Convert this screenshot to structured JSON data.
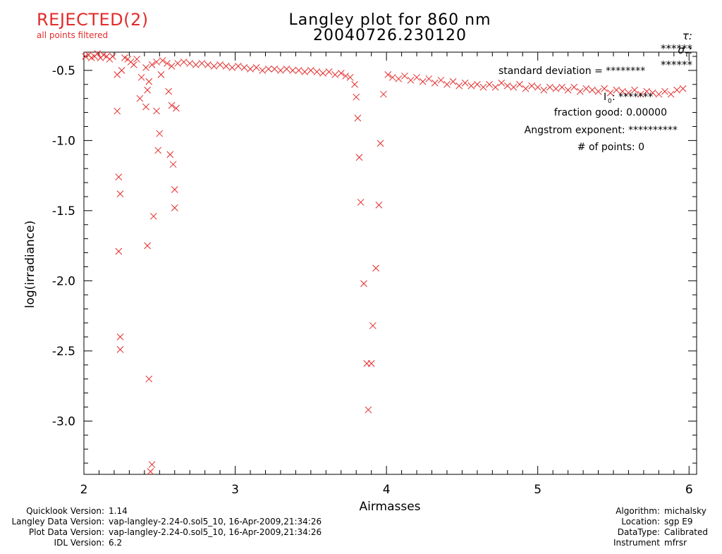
{
  "header": {
    "status": "REJECTED(2)",
    "status_note": "all points filtered",
    "title_line1": "Langley plot for 860 nm",
    "title_line2": "20040726.230120",
    "tau_label": "τ:",
    "tau_value": "******",
    "sigma_label": "σ",
    "sigma_sub": "τ",
    "sigma_value": "******"
  },
  "stats": {
    "std_dev": "standard deviation  = ********",
    "i0_label": "I",
    "i0_sub": "0",
    "i0_value": ": *******",
    "fraction_good": "fraction good: 0.00000",
    "angstrom": "Angstrom exponent: **********",
    "num_points": "# of points:     0"
  },
  "footer": {
    "left": [
      {
        "label": "Quicklook Version:",
        "value": "1.14"
      },
      {
        "label": "Langley Data Version:",
        "value": "vap-langley-2.24-0.sol5_10, 16-Apr-2009,21:34:26"
      },
      {
        "label": "Plot Data Version:",
        "value": "vap-langley-2.24-0.sol5_10, 16-Apr-2009,21:34:26"
      },
      {
        "label": "IDL Version:",
        "value": "6.2"
      }
    ],
    "right": [
      {
        "label": "Algorithm:",
        "value": "michalsky"
      },
      {
        "label": "Location:",
        "value": "sgp E9"
      },
      {
        "label": "DataType:",
        "value": "Calibrated"
      },
      {
        "label": "Instrument",
        "value": "mfrsr"
      }
    ]
  },
  "colors": {
    "marker": "#e32b2b",
    "axis": "#000000",
    "status": "#e32b2b"
  },
  "chart_data": {
    "type": "scatter",
    "xlabel": "Airmasses",
    "ylabel": "log(irradiance)",
    "xlim": [
      2,
      6.05
    ],
    "ylim": [
      -3.38,
      -0.37
    ],
    "x_ticks": [
      2,
      3,
      4,
      5,
      6
    ],
    "x_tick_labels": [
      "2",
      "3",
      "4",
      "5",
      "6"
    ],
    "y_ticks": [
      -0.5,
      -1.0,
      -1.5,
      -2.0,
      -2.5,
      -3.0
    ],
    "y_tick_labels": [
      "-0.5",
      "-1.0",
      "-1.5",
      "-2.0",
      "-2.5",
      "-3.0"
    ],
    "marker": "x",
    "series": [
      {
        "points": [
          [
            2.01,
            -0.4
          ],
          [
            2.03,
            -0.39
          ],
          [
            2.05,
            -0.41
          ],
          [
            2.07,
            -0.4
          ],
          [
            2.09,
            -0.38
          ],
          [
            2.11,
            -0.41
          ],
          [
            2.13,
            -0.39
          ],
          [
            2.15,
            -0.4
          ],
          [
            2.17,
            -0.42
          ],
          [
            2.19,
            -0.4
          ],
          [
            2.22,
            -0.53
          ],
          [
            2.25,
            -0.5
          ],
          [
            2.27,
            -0.41
          ],
          [
            2.29,
            -0.42
          ],
          [
            2.31,
            -0.44
          ],
          [
            2.33,
            -0.46
          ],
          [
            2.35,
            -0.42
          ],
          [
            2.38,
            -0.55
          ],
          [
            2.41,
            -0.48
          ],
          [
            2.45,
            -0.46
          ],
          [
            2.48,
            -0.44
          ],
          [
            2.52,
            -0.43
          ],
          [
            2.55,
            -0.45
          ],
          [
            2.58,
            -0.47
          ],
          [
            2.62,
            -0.45
          ],
          [
            2.66,
            -0.44
          ],
          [
            2.7,
            -0.45
          ],
          [
            2.74,
            -0.46
          ],
          [
            2.78,
            -0.45
          ],
          [
            2.82,
            -0.46
          ],
          [
            2.86,
            -0.47
          ],
          [
            2.9,
            -0.46
          ],
          [
            2.94,
            -0.47
          ],
          [
            2.98,
            -0.48
          ],
          [
            3.02,
            -0.47
          ],
          [
            3.06,
            -0.48
          ],
          [
            3.1,
            -0.49
          ],
          [
            3.14,
            -0.48
          ],
          [
            3.18,
            -0.5
          ],
          [
            3.22,
            -0.49
          ],
          [
            3.26,
            -0.49
          ],
          [
            3.3,
            -0.5
          ],
          [
            3.34,
            -0.49
          ],
          [
            3.38,
            -0.5
          ],
          [
            3.42,
            -0.5
          ],
          [
            3.46,
            -0.51
          ],
          [
            3.5,
            -0.5
          ],
          [
            3.54,
            -0.51
          ],
          [
            3.58,
            -0.52
          ],
          [
            3.62,
            -0.51
          ],
          [
            3.66,
            -0.53
          ],
          [
            3.7,
            -0.52
          ],
          [
            3.73,
            -0.54
          ],
          [
            3.76,
            -0.55
          ],
          [
            3.79,
            -0.6
          ],
          [
            3.8,
            -0.69
          ],
          [
            3.81,
            -0.84
          ],
          [
            3.82,
            -1.12
          ],
          [
            3.83,
            -1.44
          ],
          [
            3.85,
            -2.02
          ],
          [
            3.87,
            -2.59
          ],
          [
            3.88,
            -2.92
          ],
          [
            3.9,
            -2.59
          ],
          [
            3.91,
            -2.32
          ],
          [
            3.93,
            -1.91
          ],
          [
            3.95,
            -1.46
          ],
          [
            3.96,
            -1.02
          ],
          [
            3.98,
            -0.67
          ],
          [
            4.01,
            -0.53
          ],
          [
            4.04,
            -0.55
          ],
          [
            4.08,
            -0.56
          ],
          [
            4.12,
            -0.54
          ],
          [
            4.16,
            -0.57
          ],
          [
            4.2,
            -0.55
          ],
          [
            4.24,
            -0.58
          ],
          [
            4.28,
            -0.56
          ],
          [
            4.32,
            -0.59
          ],
          [
            4.36,
            -0.57
          ],
          [
            4.4,
            -0.6
          ],
          [
            4.44,
            -0.58
          ],
          [
            4.48,
            -0.61
          ],
          [
            4.52,
            -0.59
          ],
          [
            4.56,
            -0.61
          ],
          [
            4.6,
            -0.6
          ],
          [
            4.64,
            -0.62
          ],
          [
            4.68,
            -0.6
          ],
          [
            4.72,
            -0.62
          ],
          [
            4.76,
            -0.59
          ],
          [
            4.8,
            -0.61
          ],
          [
            4.84,
            -0.62
          ],
          [
            4.88,
            -0.6
          ],
          [
            4.92,
            -0.63
          ],
          [
            4.96,
            -0.61
          ],
          [
            5.0,
            -0.62
          ],
          [
            5.04,
            -0.64
          ],
          [
            5.08,
            -0.62
          ],
          [
            5.12,
            -0.63
          ],
          [
            5.16,
            -0.62
          ],
          [
            5.2,
            -0.64
          ],
          [
            5.24,
            -0.62
          ],
          [
            5.28,
            -0.65
          ],
          [
            5.32,
            -0.63
          ],
          [
            5.36,
            -0.64
          ],
          [
            5.4,
            -0.65
          ],
          [
            5.44,
            -0.63
          ],
          [
            5.48,
            -0.66
          ],
          [
            5.52,
            -0.64
          ],
          [
            5.56,
            -0.65
          ],
          [
            5.6,
            -0.66
          ],
          [
            5.64,
            -0.64
          ],
          [
            5.68,
            -0.67
          ],
          [
            5.72,
            -0.65
          ],
          [
            5.76,
            -0.66
          ],
          [
            5.8,
            -0.67
          ],
          [
            5.84,
            -0.65
          ],
          [
            5.88,
            -0.67
          ],
          [
            5.92,
            -0.64
          ],
          [
            5.96,
            -0.63
          ],
          [
            2.22,
            -0.79
          ],
          [
            2.23,
            -1.26
          ],
          [
            2.24,
            -1.38
          ],
          [
            2.23,
            -1.79
          ],
          [
            2.24,
            -2.4
          ],
          [
            2.24,
            -2.49
          ],
          [
            2.37,
            -0.7
          ],
          [
            2.41,
            -0.76
          ],
          [
            2.42,
            -0.64
          ],
          [
            2.43,
            -0.58
          ],
          [
            2.42,
            -1.75
          ],
          [
            2.43,
            -2.7
          ],
          [
            2.45,
            -3.31
          ],
          [
            2.44,
            -3.36
          ],
          [
            2.46,
            -1.54
          ],
          [
            2.48,
            -0.79
          ],
          [
            2.5,
            -0.95
          ],
          [
            2.49,
            -1.07
          ],
          [
            2.51,
            -0.53
          ],
          [
            2.56,
            -0.65
          ],
          [
            2.57,
            -1.1
          ],
          [
            2.58,
            -0.75
          ],
          [
            2.59,
            -1.17
          ],
          [
            2.6,
            -1.35
          ],
          [
            2.6,
            -1.48
          ],
          [
            2.61,
            -0.77
          ]
        ]
      }
    ]
  }
}
